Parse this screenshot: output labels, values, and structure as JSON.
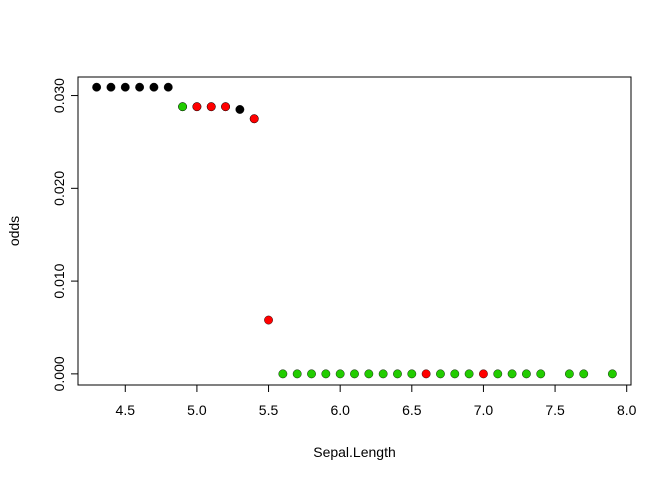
{
  "chart_data": {
    "type": "scatter",
    "title": "",
    "xlabel": "Sepal.Length",
    "ylabel": "odds",
    "xlim": [
      4.17,
      8.03
    ],
    "ylim": [
      -0.0012,
      0.032
    ],
    "x_ticks": [
      4.5,
      5.0,
      5.5,
      6.0,
      6.5,
      7.0,
      7.5,
      8.0
    ],
    "x_tick_labels": [
      "4.5",
      "5.0",
      "5.5",
      "6.0",
      "6.5",
      "7.0",
      "7.5",
      "8.0"
    ],
    "y_ticks": [
      0.0,
      0.01,
      0.02,
      0.03
    ],
    "y_tick_labels": [
      "0.000",
      "0.010",
      "0.020",
      "0.030"
    ],
    "grid": false,
    "legend": "none",
    "colors": {
      "black": "#000000",
      "red": "#ff0000",
      "green": "#22cc00"
    },
    "points": [
      {
        "x": 4.3,
        "y": 0.0309,
        "color": "black"
      },
      {
        "x": 4.4,
        "y": 0.0309,
        "color": "black"
      },
      {
        "x": 4.5,
        "y": 0.0309,
        "color": "black"
      },
      {
        "x": 4.6,
        "y": 0.0309,
        "color": "black"
      },
      {
        "x": 4.7,
        "y": 0.0309,
        "color": "black"
      },
      {
        "x": 4.8,
        "y": 0.0309,
        "color": "black"
      },
      {
        "x": 4.9,
        "y": 0.0288,
        "color": "black"
      },
      {
        "x": 4.9,
        "y": 0.0288,
        "color": "green"
      },
      {
        "x": 5.0,
        "y": 0.0288,
        "color": "black"
      },
      {
        "x": 5.0,
        "y": 0.0288,
        "color": "red"
      },
      {
        "x": 5.1,
        "y": 0.0288,
        "color": "black"
      },
      {
        "x": 5.1,
        "y": 0.0288,
        "color": "red"
      },
      {
        "x": 5.2,
        "y": 0.0288,
        "color": "black"
      },
      {
        "x": 5.2,
        "y": 0.0288,
        "color": "red"
      },
      {
        "x": 5.3,
        "y": 0.0285,
        "color": "black"
      },
      {
        "x": 5.4,
        "y": 0.0275,
        "color": "black"
      },
      {
        "x": 5.4,
        "y": 0.0275,
        "color": "red"
      },
      {
        "x": 5.5,
        "y": 0.0058,
        "color": "red"
      },
      {
        "x": 5.6,
        "y": 0.0,
        "color": "green"
      },
      {
        "x": 5.7,
        "y": 0.0,
        "color": "green"
      },
      {
        "x": 5.8,
        "y": 0.0,
        "color": "green"
      },
      {
        "x": 5.9,
        "y": 0.0,
        "color": "green"
      },
      {
        "x": 6.0,
        "y": 0.0,
        "color": "green"
      },
      {
        "x": 6.1,
        "y": 0.0,
        "color": "green"
      },
      {
        "x": 6.2,
        "y": 0.0,
        "color": "green"
      },
      {
        "x": 6.3,
        "y": 0.0,
        "color": "green"
      },
      {
        "x": 6.4,
        "y": 0.0,
        "color": "green"
      },
      {
        "x": 6.5,
        "y": 0.0,
        "color": "green"
      },
      {
        "x": 6.6,
        "y": 0.0,
        "color": "red"
      },
      {
        "x": 6.7,
        "y": 0.0,
        "color": "green"
      },
      {
        "x": 6.8,
        "y": 0.0,
        "color": "green"
      },
      {
        "x": 6.9,
        "y": 0.0,
        "color": "green"
      },
      {
        "x": 7.0,
        "y": 0.0,
        "color": "red"
      },
      {
        "x": 7.1,
        "y": 0.0,
        "color": "green"
      },
      {
        "x": 7.2,
        "y": 0.0,
        "color": "green"
      },
      {
        "x": 7.3,
        "y": 0.0,
        "color": "green"
      },
      {
        "x": 7.4,
        "y": 0.0,
        "color": "green"
      },
      {
        "x": 7.6,
        "y": 0.0,
        "color": "green"
      },
      {
        "x": 7.7,
        "y": 0.0,
        "color": "green"
      },
      {
        "x": 7.9,
        "y": 0.0,
        "color": "green"
      }
    ]
  }
}
